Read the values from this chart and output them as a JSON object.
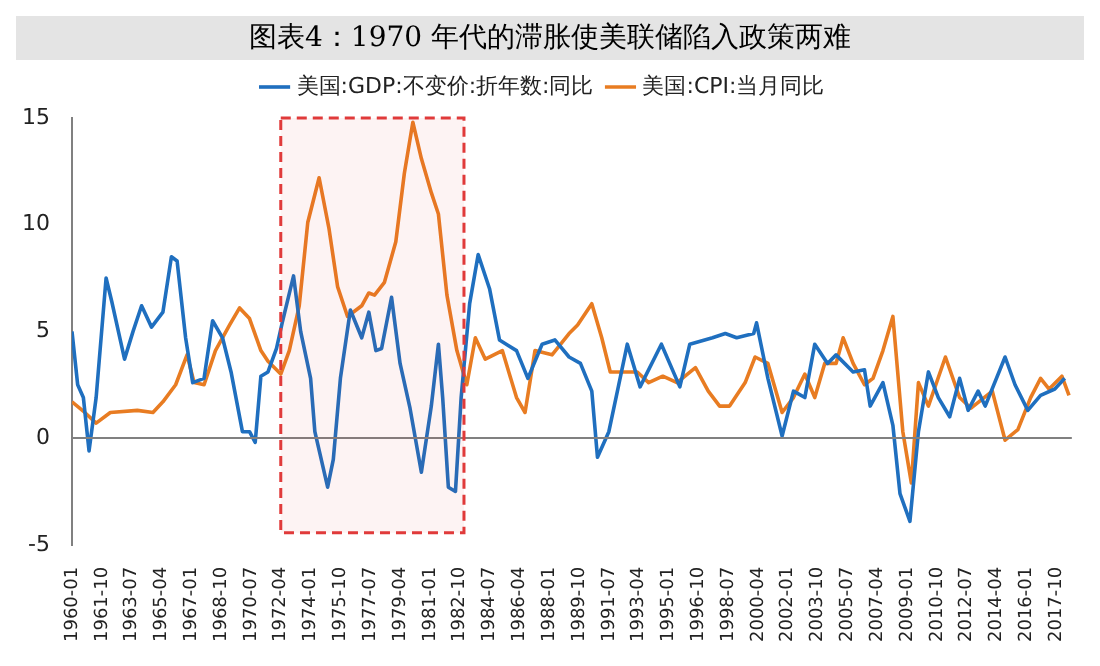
{
  "chart_data": {
    "type": "line",
    "title": "图表4：1970 年代的滞胀使美联储陷入政策两难",
    "xlim": [
      "1960-01",
      "2018-09"
    ],
    "xticks": [
      "1960-01",
      "1961-10",
      "1963-07",
      "1965-04",
      "1967-01",
      "1968-10",
      "1970-07",
      "1972-04",
      "1974-01",
      "1975-10",
      "1977-07",
      "1979-04",
      "1981-01",
      "1982-10",
      "1984-07",
      "1986-04",
      "1988-01",
      "1989-10",
      "1991-07",
      "1993-04",
      "1995-01",
      "1996-10",
      "1998-07",
      "2000-04",
      "2002-01",
      "2003-10",
      "2005-07",
      "2007-04",
      "2009-01",
      "2010-10",
      "2012-07",
      "2014-04",
      "2016-01",
      "2017-10"
    ],
    "ylim": [
      -5,
      15
    ],
    "yticks": [
      -5,
      0,
      5,
      10,
      15
    ],
    "grid": false,
    "legend": "top",
    "marker": "none",
    "line_style": "solid",
    "ref_lines": [
      {
        "axis": "y",
        "value": 0,
        "color": "#808080"
      }
    ],
    "bands": [
      {
        "axis": "x",
        "from": "1972-04",
        "to": "1983-01",
        "color": "#e03a3a"
      }
    ],
    "series": [
      {
        "name": "美国:GDP:不变价:折年数:同比",
        "color": "#1f6fbf",
        "x": [
          "1960-01",
          "1960-05",
          "1960-09",
          "1961-01",
          "1961-06",
          "1962-01",
          "1962-05",
          "1963-02",
          "1963-08",
          "1964-02",
          "1964-09",
          "1965-05",
          "1965-11",
          "1966-03",
          "1966-09",
          "1967-02",
          "1967-10",
          "1968-04",
          "1968-11",
          "1969-05",
          "1970-01",
          "1970-06",
          "1970-10",
          "1971-02",
          "1971-07",
          "1972-01",
          "1972-05",
          "1973-01",
          "1973-06",
          "1974-01",
          "1974-04",
          "1975-01",
          "1975-05",
          "1975-10",
          "1976-05",
          "1977-01",
          "1977-06",
          "1977-11",
          "1978-03",
          "1978-10",
          "1979-04",
          "1979-11",
          "1980-07",
          "1981-02",
          "1981-07",
          "1981-10",
          "1982-02",
          "1982-07",
          "1982-11",
          "1983-05",
          "1983-11",
          "1984-07",
          "1985-02",
          "1986-02",
          "1986-10",
          "1987-08",
          "1988-05",
          "1989-03",
          "1989-11",
          "1990-07",
          "1990-11",
          "1991-07",
          "1992-02",
          "1992-08",
          "1993-05",
          "1994-08",
          "1995-09",
          "1996-04",
          "1997-08",
          "1998-05",
          "1999-01",
          "2000-01",
          "2000-03",
          "2000-11",
          "2001-09",
          "2002-05",
          "2003-01",
          "2003-08",
          "2004-05",
          "2004-11",
          "2005-11",
          "2006-07",
          "2006-11",
          "2007-08",
          "2008-03",
          "2008-08",
          "2009-03",
          "2009-09",
          "2010-04",
          "2010-11",
          "2011-07",
          "2012-02",
          "2012-08",
          "2013-03",
          "2013-08",
          "2014-10",
          "2015-05",
          "2016-02",
          "2016-11",
          "2017-09",
          "2018-04"
        ],
        "values": [
          5.0,
          2.5,
          1.9,
          -0.6,
          1.9,
          7.5,
          6.4,
          3.7,
          5.0,
          6.2,
          5.2,
          5.9,
          8.5,
          8.3,
          4.7,
          2.6,
          2.8,
          5.5,
          4.7,
          3.1,
          0.3,
          0.3,
          -0.2,
          2.9,
          3.1,
          4.2,
          5.4,
          7.6,
          5.0,
          2.8,
          0.3,
          -2.3,
          -1.0,
          2.8,
          6.0,
          4.7,
          5.9,
          4.1,
          4.2,
          6.6,
          3.5,
          1.4,
          -1.6,
          1.5,
          4.4,
          1.9,
          -2.3,
          -2.5,
          1.9,
          6.3,
          8.6,
          7.0,
          4.6,
          4.1,
          2.8,
          4.4,
          4.6,
          3.8,
          3.5,
          2.2,
          -0.9,
          0.3,
          2.5,
          4.4,
          2.4,
          4.4,
          2.4,
          4.4,
          4.7,
          4.9,
          4.7,
          4.9,
          5.4,
          2.8,
          0.1,
          2.2,
          1.9,
          4.4,
          3.5,
          3.9,
          3.1,
          3.2,
          1.5,
          2.6,
          0.6,
          -2.6,
          -3.9,
          0.3,
          3.1,
          1.9,
          1.0,
          2.8,
          1.3,
          2.2,
          1.5,
          3.8,
          2.5,
          1.3,
          2.0,
          2.3,
          2.8
        ]
      },
      {
        "name": "美国:CPI:当月同比",
        "color": "#e87c22",
        "x": [
          "1960-01",
          "1960-10",
          "1961-06",
          "1962-04",
          "1963-11",
          "1964-10",
          "1965-05",
          "1966-02",
          "1966-10",
          "1967-03",
          "1967-10",
          "1968-06",
          "1969-04",
          "1969-11",
          "1970-06",
          "1971-02",
          "1971-07",
          "1972-04",
          "1972-10",
          "1973-05",
          "1973-11",
          "1974-07",
          "1975-02",
          "1975-08",
          "1976-03",
          "1977-01",
          "1977-06",
          "1977-10",
          "1978-05",
          "1979-01",
          "1979-07",
          "1980-01",
          "1980-07",
          "1981-02",
          "1981-07",
          "1982-01",
          "1982-08",
          "1983-03",
          "1983-09",
          "1984-04",
          "1985-04",
          "1986-02",
          "1986-08",
          "1987-03",
          "1988-03",
          "1989-03",
          "1989-09",
          "1990-07",
          "1991-02",
          "1991-08",
          "1993-03",
          "1993-11",
          "1994-09",
          "1995-07",
          "1996-08",
          "1997-05",
          "1998-01",
          "1998-08",
          "1999-07",
          "2000-02",
          "2000-11",
          "2001-09",
          "2002-05",
          "2003-01",
          "2003-08",
          "2004-03",
          "2004-11",
          "2005-04",
          "2005-11",
          "2006-07",
          "2007-01",
          "2007-08",
          "2008-03",
          "2008-10",
          "2009-04",
          "2009-09",
          "2010-04",
          "2011-04",
          "2012-02",
          "2012-10",
          "2014-01",
          "2014-10",
          "2015-07",
          "2016-04",
          "2016-11",
          "2017-05",
          "2018-02",
          "2018-07"
        ],
        "values": [
          1.7,
          1.2,
          0.7,
          1.2,
          1.3,
          1.2,
          1.7,
          2.5,
          3.9,
          2.6,
          2.5,
          4.1,
          5.3,
          6.1,
          5.6,
          4.1,
          3.6,
          3.0,
          4.1,
          6.2,
          10.1,
          12.2,
          9.8,
          7.1,
          5.7,
          6.2,
          6.8,
          6.7,
          7.3,
          9.2,
          12.4,
          14.8,
          13.1,
          11.5,
          10.5,
          6.7,
          4.1,
          2.5,
          4.7,
          3.7,
          4.1,
          1.9,
          1.2,
          4.1,
          3.9,
          4.9,
          5.3,
          6.3,
          4.7,
          3.1,
          3.1,
          2.6,
          2.9,
          2.6,
          3.3,
          2.2,
          1.5,
          1.5,
          2.6,
          3.8,
          3.5,
          1.2,
          1.9,
          3.0,
          1.9,
          3.5,
          3.5,
          4.7,
          3.5,
          2.5,
          2.8,
          4.1,
          5.7,
          0.3,
          -2.1,
          2.6,
          1.5,
          3.8,
          1.9,
          1.4,
          2.2,
          -0.1,
          0.4,
          1.9,
          2.8,
          2.3,
          2.9,
          2.0
        ]
      }
    ]
  }
}
